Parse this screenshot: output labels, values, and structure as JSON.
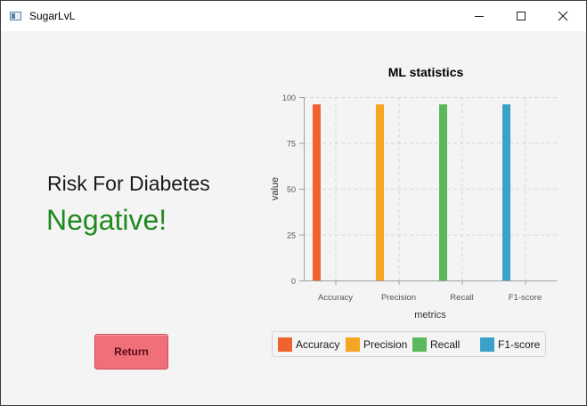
{
  "window": {
    "title": "SugarLvL",
    "minimize_icon": "minimize-icon",
    "maximize_icon": "maximize-icon",
    "close_icon": "close-icon"
  },
  "result": {
    "heading": "Risk For Diabetes",
    "value": "Negative!",
    "value_color": "#1f8a1f"
  },
  "return_button": {
    "label": "Return",
    "color": "#f0707a"
  },
  "chart_data": {
    "type": "bar",
    "title": "ML statistics",
    "xlabel": "metrics",
    "ylabel": "value",
    "ylim": [
      0,
      100
    ],
    "yticks": [
      "0",
      "25",
      "50",
      "75",
      "100"
    ],
    "categories": [
      "Accuracy",
      "Precision",
      "Recall",
      "F1-score"
    ],
    "series": [
      {
        "name": "Accuracy",
        "color": "#f0622e",
        "values": [
          96,
          null,
          null,
          null
        ]
      },
      {
        "name": "Precision",
        "color": "#f6a623",
        "values": [
          null,
          96,
          null,
          null
        ]
      },
      {
        "name": "Recall",
        "color": "#5cb85c",
        "values": [
          null,
          null,
          96,
          null
        ]
      },
      {
        "name": "F1-score",
        "color": "#3aa2c9",
        "values": [
          null,
          null,
          null,
          96
        ]
      }
    ],
    "grid": true,
    "legend": "bottom"
  }
}
